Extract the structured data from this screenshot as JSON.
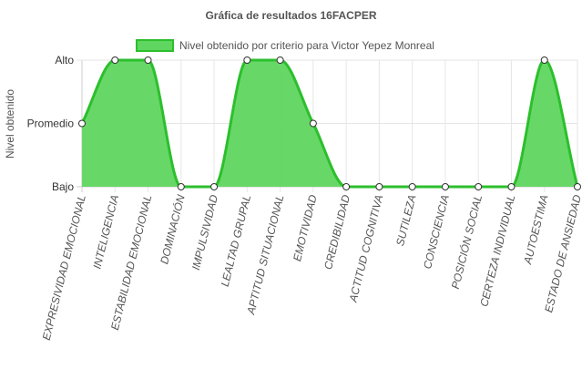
{
  "colors": {
    "series_fill": "#5fd65f",
    "series_line": "#2cbf2c",
    "grid": "#e6e6e6",
    "axis": "#cccccc",
    "text": "#555555"
  },
  "chart_data": {
    "type": "area",
    "title": "Gráfica de resultados 16FACPER",
    "ylabel": "Nivel obtenido",
    "xlabel": "",
    "y_levels": [
      "Bajo",
      "Promedio",
      "Alto"
    ],
    "ylim": [
      0,
      2
    ],
    "legend_position": "top",
    "grid": true,
    "categories": [
      "EXPRESIVIDAD EMOCIONAL",
      "INTELIGENCIA",
      "ESTABILIDAD EMOCIONAL",
      "DOMINACIÓN",
      "IMPULSIVIDAD",
      "LEALTAD GRUPAL",
      "APTITUD SITUACIONAL",
      "EMOTIVIDAD",
      "CREDIBILIDAD",
      "ACTITUD COGNITIVA",
      "SUTILEZA",
      "CONSCIENCIA",
      "POSICIÓN SOCIAL",
      "CERTEZA INDIVIDUAL",
      "AUTOESTIMA",
      "ESTADO DE ANSIEDAD"
    ],
    "series": [
      {
        "name": "Nivel obtenido por criterio para Victor Yepez Monreal",
        "values": [
          1,
          2,
          2,
          0,
          0,
          2,
          2,
          1,
          0,
          0,
          0,
          0,
          0,
          0,
          2,
          0
        ]
      }
    ]
  }
}
